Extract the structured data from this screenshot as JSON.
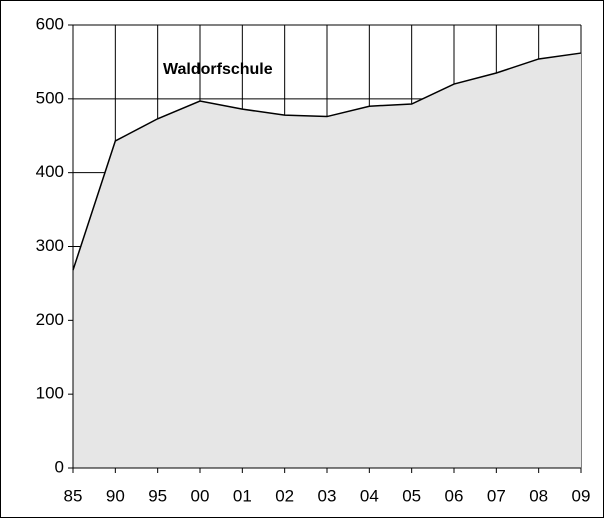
{
  "chart_data": {
    "type": "area",
    "title": "Waldorfschule",
    "categories": [
      "85",
      "90",
      "95",
      "00",
      "01",
      "02",
      "03",
      "04",
      "05",
      "06",
      "07",
      "08",
      "09"
    ],
    "values": [
      268,
      443,
      473,
      497,
      486,
      478,
      476,
      490,
      493,
      520,
      535,
      554,
      562
    ],
    "color": "#e6e6e6",
    "line_color": "#000000",
    "ylim": [
      0,
      600
    ],
    "yticks": [
      0,
      100,
      200,
      300,
      400,
      500,
      600
    ],
    "grid": true
  }
}
